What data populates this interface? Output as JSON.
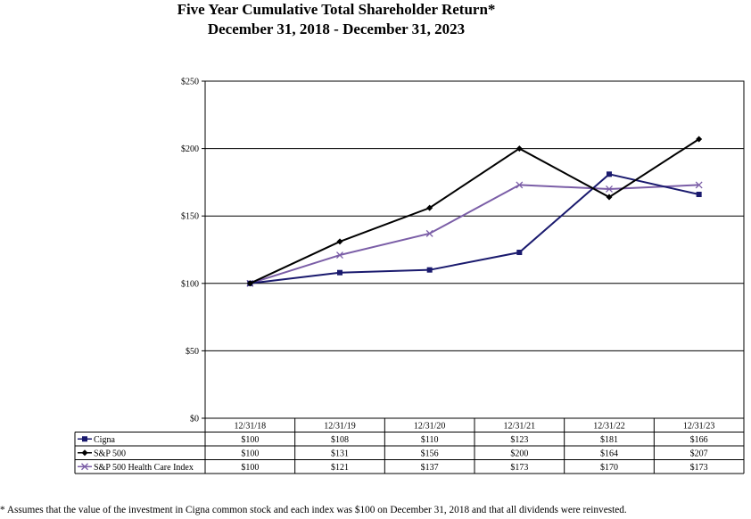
{
  "title": "Five Year Cumulative Total Shareholder Return*",
  "subtitle": "December 31, 2018 - December 31, 2023",
  "footnote": "* Assumes that the value of the investment in Cigna common stock and each index was $100 on December 31, 2018 and that all dividends were reinvested.",
  "chart_data": {
    "type": "line",
    "title": "Five Year Cumulative Total Shareholder Return*",
    "subtitle": "December 31, 2018 - December 31, 2023",
    "xlabel": "",
    "ylabel": "",
    "categories": [
      "12/31/18",
      "12/31/19",
      "12/31/20",
      "12/31/21",
      "12/31/22",
      "12/31/23"
    ],
    "ylim": [
      0,
      250
    ],
    "yticks": [
      0,
      50,
      100,
      150,
      200,
      250
    ],
    "ytick_labels": [
      "$0",
      "$50",
      "$100",
      "$150",
      "$200",
      "$250"
    ],
    "grid": true,
    "legend": "data-table-below",
    "series": [
      {
        "name": "Cigna",
        "color": "#1a1a6e",
        "marker": "square",
        "values": [
          100,
          108,
          110,
          123,
          181,
          166
        ],
        "labels": [
          "$100",
          "$108",
          "$110",
          "$123",
          "$181",
          "$166"
        ]
      },
      {
        "name": "S&P 500",
        "color": "#000000",
        "marker": "diamond",
        "values": [
          100,
          131,
          156,
          200,
          164,
          207
        ],
        "labels": [
          "$100",
          "$131",
          "$156",
          "$200",
          "$164",
          "$207"
        ]
      },
      {
        "name": "S&P 500 Health Care Index",
        "color": "#7b5ea7",
        "marker": "x",
        "values": [
          100,
          121,
          137,
          173,
          170,
          173
        ],
        "labels": [
          "$100",
          "$121",
          "$137",
          "$173",
          "$170",
          "$173"
        ]
      }
    ]
  }
}
